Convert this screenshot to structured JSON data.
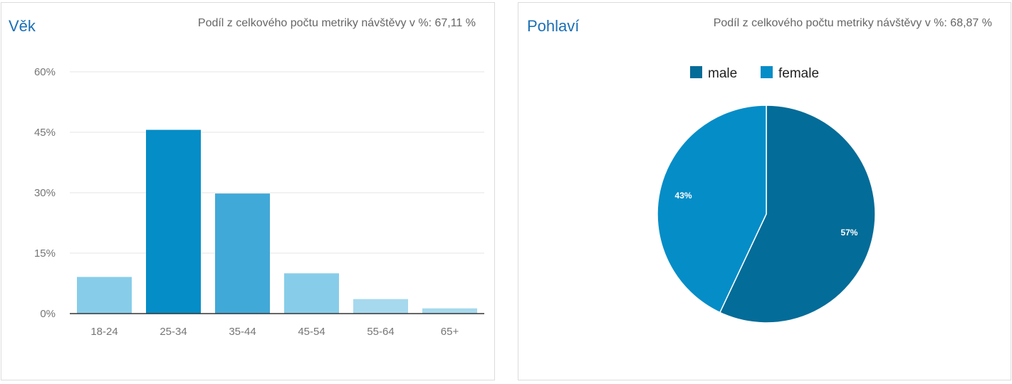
{
  "panels": {
    "age": {
      "title": "Věk",
      "subtitle": "Podíl z celkového počtu metriky návštěvy v %: 67,11 %"
    },
    "gender": {
      "title": "Pohlaví",
      "subtitle": "Podíl z celkového počtu metriky návštěvy v %: 68,87 %"
    }
  },
  "chart_data": [
    {
      "type": "bar",
      "title": "Věk",
      "categories": [
        "18-24",
        "25-34",
        "35-44",
        "45-54",
        "55-64",
        "65+"
      ],
      "values": [
        9.1,
        45.6,
        29.8,
        10.0,
        3.6,
        1.3
      ],
      "unit": "%",
      "ylim": [
        0,
        60
      ],
      "yticks": [
        0,
        15,
        30,
        45,
        60
      ],
      "ytick_labels": [
        "0%",
        "15%",
        "30%",
        "45%",
        "60%"
      ],
      "bar_colors": [
        "#87cde9",
        "#058dc7",
        "#41a9d8",
        "#87cde9",
        "#a6d9ee",
        "#a6d9ee"
      ],
      "grid": true,
      "legend": "none"
    },
    {
      "type": "pie",
      "title": "Pohlaví",
      "categories": [
        "male",
        "female"
      ],
      "values": [
        57,
        43
      ],
      "slice_labels": [
        "57%",
        "43%"
      ],
      "colors": [
        "#046c98",
        "#058dc7"
      ],
      "legend": "top"
    }
  ]
}
